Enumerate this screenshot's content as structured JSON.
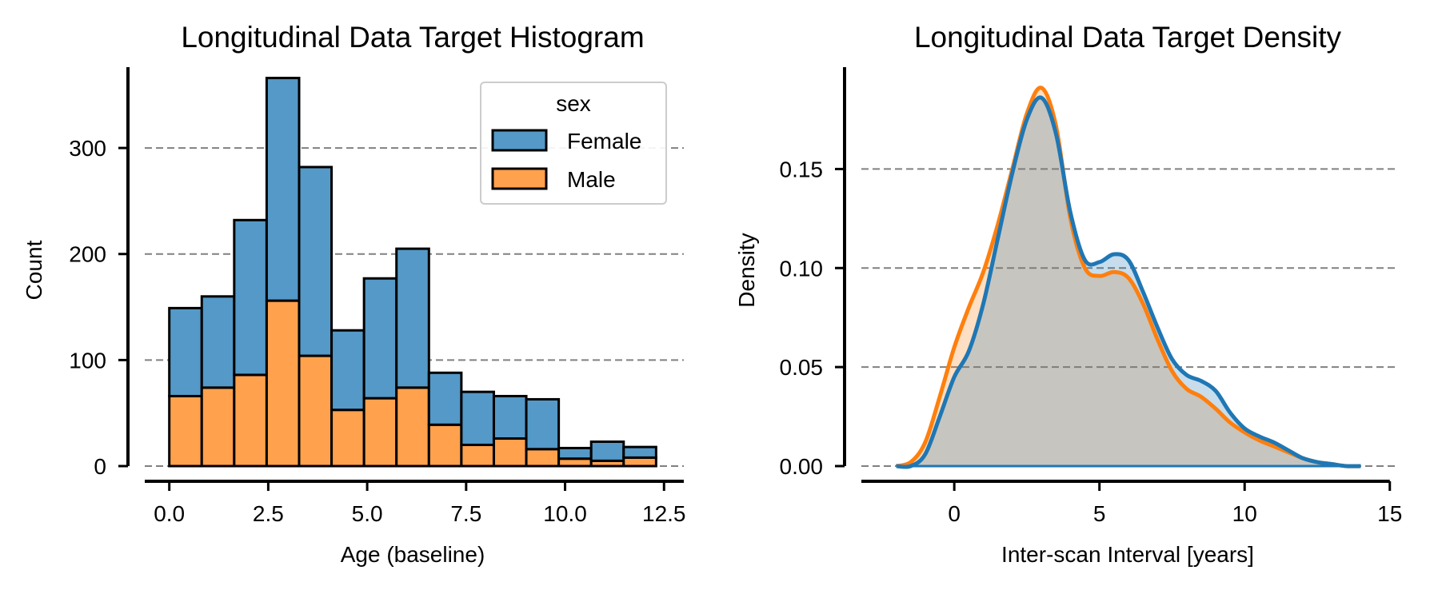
{
  "chart_data": [
    {
      "type": "bar",
      "stacked": true,
      "title": "Longitudinal Data Target Histogram",
      "xlabel": "Age (baseline)",
      "ylabel": "Count",
      "xlim": [
        -0.62,
        13.0
      ],
      "ylim": [
        0,
        380
      ],
      "xticks": [
        0.0,
        2.5,
        5.0,
        7.5,
        10.0,
        12.5
      ],
      "xtick_labels": [
        "0.0",
        "2.5",
        "5.0",
        "7.5",
        "10.0",
        "12.5"
      ],
      "yticks": [
        0,
        100,
        200,
        300
      ],
      "ytick_labels": [
        "0",
        "100",
        "200",
        "300"
      ],
      "grid": "y-dashed",
      "bin_edges": [
        0.0,
        0.82,
        1.64,
        2.46,
        3.28,
        4.1,
        4.92,
        5.74,
        6.56,
        7.38,
        8.2,
        9.02,
        9.84,
        10.66,
        11.48,
        12.3
      ],
      "legend": {
        "title": "sex",
        "position": "top-right"
      },
      "series": [
        {
          "name": "Female",
          "color": "#5499c7",
          "values": [
            83,
            86,
            146,
            210,
            178,
            75,
            113,
            131,
            49,
            50,
            40,
            47,
            10,
            18,
            10
          ]
        },
        {
          "name": "Male",
          "color": "#ffa14d",
          "values": [
            66,
            74,
            86,
            156,
            104,
            53,
            64,
            74,
            39,
            20,
            26,
            16,
            7,
            5,
            8
          ]
        }
      ]
    },
    {
      "type": "area",
      "title": "Longitudinal Data Target Density",
      "xlabel": "Inter-scan Interval [years]",
      "ylabel": "Density",
      "xlim": [
        -3.2,
        15.2
      ],
      "ylim": [
        0,
        0.197
      ],
      "xticks": [
        0,
        5,
        10,
        15
      ],
      "xtick_labels": [
        "0",
        "5",
        "10",
        "15"
      ],
      "yticks": [
        0.0,
        0.05,
        0.1,
        0.15
      ],
      "ytick_labels": [
        "0.00",
        "0.05",
        "0.10",
        "0.15"
      ],
      "grid": "y-dashed",
      "series": [
        {
          "color": "#ff7f0e",
          "x": [
            -2.0,
            -1.5,
            -1.0,
            -0.5,
            0.0,
            0.5,
            1.0,
            1.5,
            2.0,
            2.5,
            3.0,
            3.5,
            4.0,
            4.5,
            5.0,
            5.5,
            6.0,
            6.5,
            7.0,
            7.5,
            8.0,
            8.5,
            9.0,
            9.5,
            10.0,
            10.5,
            11.0,
            11.5,
            12.0,
            12.5,
            13.0,
            13.5,
            14.0
          ],
          "y": [
            0.0,
            0.002,
            0.012,
            0.035,
            0.06,
            0.08,
            0.098,
            0.122,
            0.15,
            0.178,
            0.191,
            0.172,
            0.125,
            0.1,
            0.096,
            0.098,
            0.095,
            0.082,
            0.064,
            0.048,
            0.039,
            0.035,
            0.029,
            0.022,
            0.017,
            0.013,
            0.01,
            0.007,
            0.004,
            0.002,
            0.001,
            0.0,
            0.0
          ]
        },
        {
          "color": "#1f77b4",
          "x": [
            -2.0,
            -1.5,
            -1.0,
            -0.5,
            0.0,
            0.5,
            1.0,
            1.5,
            2.0,
            2.5,
            3.0,
            3.5,
            4.0,
            4.5,
            5.0,
            5.5,
            6.0,
            6.5,
            7.0,
            7.5,
            8.0,
            8.5,
            9.0,
            9.5,
            10.0,
            10.5,
            11.0,
            11.5,
            12.0,
            12.5,
            13.0,
            13.5,
            14.0
          ],
          "y": [
            0.0,
            0.0,
            0.006,
            0.025,
            0.045,
            0.058,
            0.082,
            0.115,
            0.148,
            0.175,
            0.186,
            0.168,
            0.128,
            0.104,
            0.103,
            0.107,
            0.104,
            0.088,
            0.07,
            0.054,
            0.046,
            0.043,
            0.038,
            0.027,
            0.019,
            0.015,
            0.012,
            0.008,
            0.004,
            0.002,
            0.001,
            0.0,
            0.0
          ]
        }
      ]
    }
  ]
}
